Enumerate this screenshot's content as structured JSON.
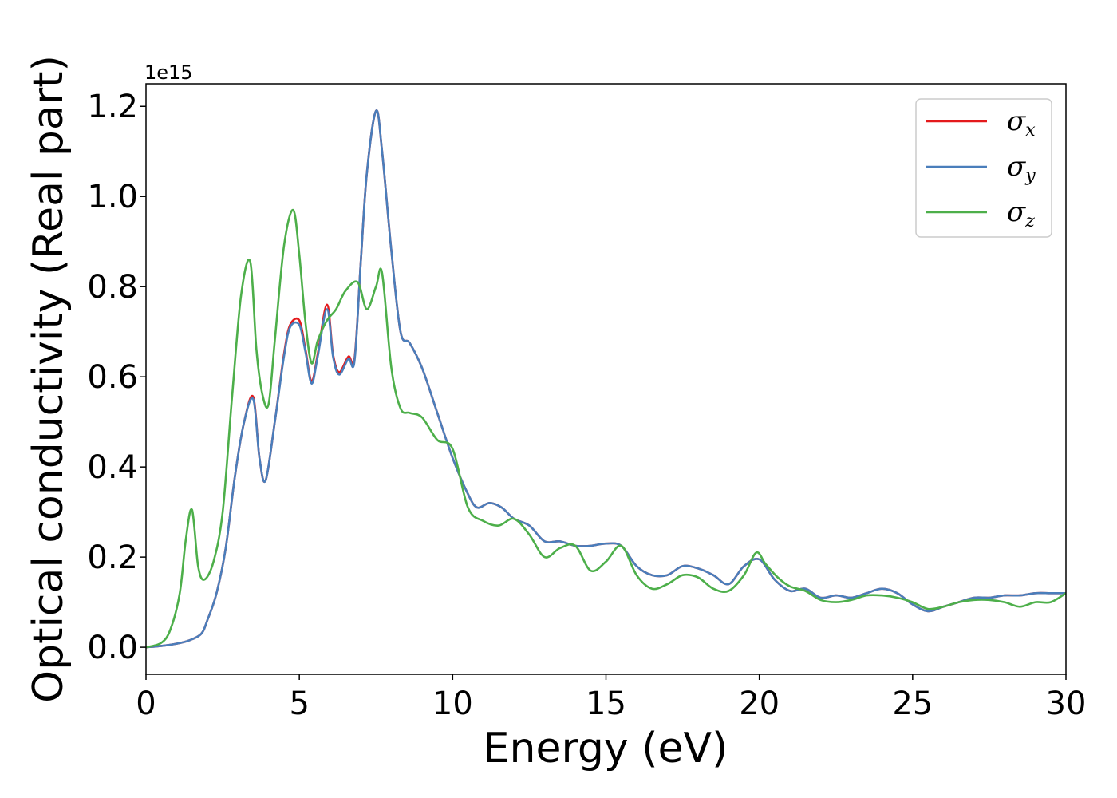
{
  "chart_data": {
    "type": "line",
    "title": "",
    "xlabel": "Energy (eV)",
    "ylabel": "Optical conductivity (Real part)",
    "y_offset_label": "1e15",
    "xlim": [
      0,
      30
    ],
    "ylim": [
      -0.06,
      1.25
    ],
    "x_ticks": [
      0,
      5,
      10,
      15,
      20,
      25,
      30
    ],
    "x_tick_labels": [
      "0",
      "5",
      "10",
      "15",
      "20",
      "25",
      "30"
    ],
    "y_ticks": [
      0.0,
      0.2,
      0.4,
      0.6,
      0.8,
      1.0,
      1.2
    ],
    "y_tick_labels": [
      "0.0",
      "0.2",
      "0.4",
      "0.6",
      "0.8",
      "1.0",
      "1.2"
    ],
    "grid": false,
    "legend_position": "top-right",
    "series": [
      {
        "name": "σx",
        "symbol": "σ",
        "subscript": "x",
        "color": "#e41a1c",
        "x": [
          0,
          0.5,
          1.0,
          1.4,
          1.8,
          2.0,
          2.3,
          2.6,
          2.9,
          3.2,
          3.5,
          3.7,
          3.9,
          4.2,
          4.5,
          4.7,
          5.0,
          5.2,
          5.4,
          5.6,
          5.9,
          6.1,
          6.3,
          6.6,
          6.8,
          7.0,
          7.2,
          7.5,
          7.7,
          8.0,
          8.3,
          8.6,
          9.0,
          9.5,
          10.0,
          10.5,
          10.8,
          11.2,
          11.6,
          12.0,
          12.5,
          13.0,
          13.5,
          14.0,
          14.5,
          15.0,
          15.5,
          16.0,
          16.5,
          17.0,
          17.5,
          18.0,
          18.5,
          19.0,
          19.5,
          20.0,
          20.5,
          21.0,
          21.5,
          22.0,
          22.5,
          23.0,
          23.5,
          24.0,
          24.5,
          25.0,
          25.5,
          26.0,
          26.5,
          27.0,
          27.5,
          28.0,
          28.5,
          29.0,
          29.5,
          30.0
        ],
        "y": [
          0.0,
          0.003,
          0.008,
          0.015,
          0.03,
          0.06,
          0.12,
          0.22,
          0.38,
          0.5,
          0.555,
          0.42,
          0.37,
          0.5,
          0.65,
          0.715,
          0.725,
          0.66,
          0.59,
          0.65,
          0.76,
          0.65,
          0.61,
          0.645,
          0.64,
          0.85,
          1.05,
          1.19,
          1.1,
          0.88,
          0.7,
          0.675,
          0.62,
          0.52,
          0.42,
          0.34,
          0.31,
          0.32,
          0.31,
          0.285,
          0.27,
          0.235,
          0.235,
          0.225,
          0.225,
          0.23,
          0.225,
          0.18,
          0.16,
          0.16,
          0.18,
          0.175,
          0.16,
          0.14,
          0.18,
          0.195,
          0.15,
          0.125,
          0.13,
          0.11,
          0.115,
          0.11,
          0.12,
          0.13,
          0.12,
          0.095,
          0.08,
          0.09,
          0.1,
          0.11,
          0.11,
          0.115,
          0.115,
          0.12,
          0.12,
          0.12
        ]
      },
      {
        "name": "σy",
        "symbol": "σ",
        "subscript": "y",
        "color": "#4a7ebb",
        "x": [
          0,
          0.5,
          1.0,
          1.4,
          1.8,
          2.0,
          2.3,
          2.6,
          2.9,
          3.2,
          3.5,
          3.7,
          3.9,
          4.2,
          4.5,
          4.7,
          5.0,
          5.2,
          5.4,
          5.6,
          5.9,
          6.1,
          6.3,
          6.6,
          6.8,
          7.0,
          7.2,
          7.5,
          7.7,
          8.0,
          8.3,
          8.6,
          9.0,
          9.5,
          10.0,
          10.5,
          10.8,
          11.2,
          11.6,
          12.0,
          12.5,
          13.0,
          13.5,
          14.0,
          14.5,
          15.0,
          15.5,
          16.0,
          16.5,
          17.0,
          17.5,
          18.0,
          18.5,
          19.0,
          19.5,
          20.0,
          20.5,
          21.0,
          21.5,
          22.0,
          22.5,
          23.0,
          23.5,
          24.0,
          24.5,
          25.0,
          25.5,
          26.0,
          26.5,
          27.0,
          27.5,
          28.0,
          28.5,
          29.0,
          29.5,
          30.0
        ],
        "y": [
          0.0,
          0.003,
          0.008,
          0.015,
          0.03,
          0.06,
          0.12,
          0.22,
          0.38,
          0.5,
          0.55,
          0.42,
          0.37,
          0.5,
          0.645,
          0.71,
          0.715,
          0.655,
          0.585,
          0.645,
          0.75,
          0.645,
          0.605,
          0.64,
          0.635,
          0.85,
          1.05,
          1.19,
          1.1,
          0.88,
          0.7,
          0.675,
          0.62,
          0.52,
          0.42,
          0.34,
          0.31,
          0.32,
          0.31,
          0.285,
          0.27,
          0.235,
          0.235,
          0.225,
          0.225,
          0.23,
          0.225,
          0.18,
          0.16,
          0.16,
          0.18,
          0.175,
          0.16,
          0.14,
          0.18,
          0.195,
          0.15,
          0.125,
          0.13,
          0.11,
          0.115,
          0.11,
          0.12,
          0.13,
          0.12,
          0.095,
          0.08,
          0.09,
          0.1,
          0.11,
          0.11,
          0.115,
          0.115,
          0.12,
          0.12,
          0.12
        ]
      },
      {
        "name": "σz",
        "symbol": "σ",
        "subscript": "z",
        "color": "#4daf4a",
        "x": [
          0,
          0.5,
          0.8,
          1.1,
          1.3,
          1.5,
          1.7,
          1.9,
          2.2,
          2.5,
          2.8,
          3.1,
          3.4,
          3.6,
          3.8,
          4.0,
          4.2,
          4.5,
          4.8,
          5.0,
          5.2,
          5.4,
          5.6,
          5.9,
          6.2,
          6.5,
          6.9,
          7.2,
          7.5,
          7.7,
          8.0,
          8.3,
          8.6,
          9.0,
          9.5,
          10.0,
          10.5,
          11.0,
          11.5,
          12.0,
          12.5,
          13.0,
          13.5,
          14.0,
          14.5,
          15.0,
          15.5,
          16.0,
          16.5,
          17.0,
          17.5,
          18.0,
          18.5,
          19.0,
          19.5,
          19.9,
          20.2,
          20.6,
          21.0,
          21.5,
          22.0,
          22.5,
          23.0,
          23.5,
          24.0,
          24.5,
          25.0,
          25.5,
          26.0,
          26.5,
          27.0,
          27.5,
          28.0,
          28.5,
          29.0,
          29.5,
          30.0
        ],
        "y": [
          0.0,
          0.01,
          0.04,
          0.12,
          0.24,
          0.305,
          0.18,
          0.15,
          0.19,
          0.3,
          0.55,
          0.78,
          0.855,
          0.66,
          0.56,
          0.54,
          0.68,
          0.89,
          0.97,
          0.87,
          0.72,
          0.63,
          0.68,
          0.725,
          0.75,
          0.79,
          0.81,
          0.75,
          0.8,
          0.83,
          0.62,
          0.53,
          0.52,
          0.51,
          0.46,
          0.44,
          0.31,
          0.28,
          0.27,
          0.285,
          0.25,
          0.2,
          0.22,
          0.225,
          0.17,
          0.19,
          0.225,
          0.16,
          0.13,
          0.14,
          0.16,
          0.155,
          0.13,
          0.125,
          0.16,
          0.21,
          0.185,
          0.155,
          0.135,
          0.125,
          0.105,
          0.1,
          0.105,
          0.115,
          0.115,
          0.11,
          0.1,
          0.085,
          0.09,
          0.1,
          0.105,
          0.105,
          0.1,
          0.09,
          0.1,
          0.1,
          0.12
        ]
      }
    ]
  }
}
